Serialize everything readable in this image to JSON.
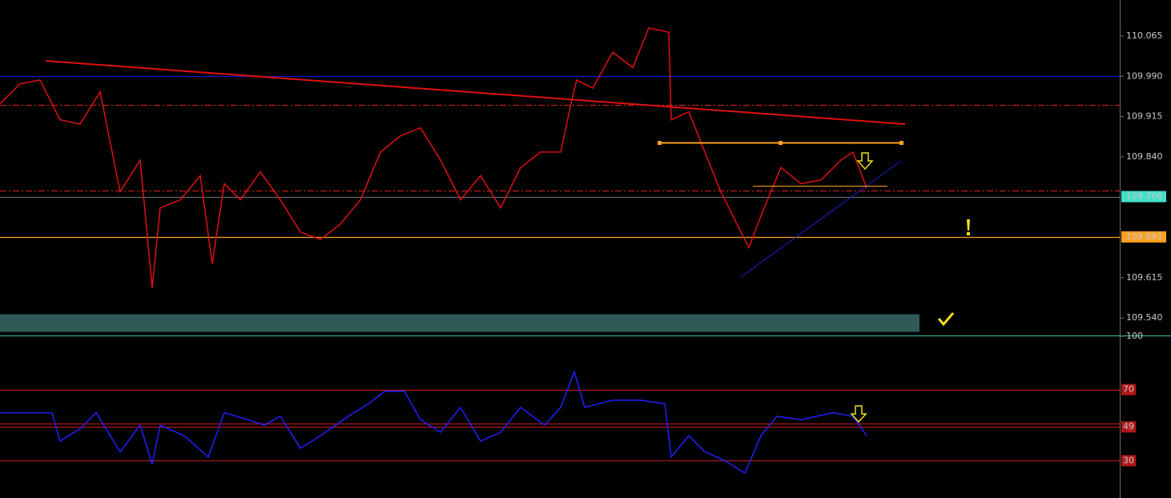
{
  "chart_data": [
    {
      "type": "line",
      "color": "#e01010",
      "x": [
        0,
        25,
        50,
        75,
        100,
        125,
        150,
        175,
        190,
        200,
        225,
        250,
        265,
        280,
        300,
        325,
        350,
        375,
        400,
        425,
        450,
        475,
        500,
        525,
        550,
        575,
        600,
        625,
        650,
        675,
        700,
        715,
        720,
        740,
        765,
        790,
        810,
        835,
        838,
        860,
        880,
        900,
        920,
        935,
        950,
        975,
        1000,
        1025,
        1050,
        1065,
        1082
      ],
      "values": [
        109.939,
        109.976,
        109.983,
        109.909,
        109.901,
        109.961,
        109.775,
        109.834,
        109.596,
        109.745,
        109.76,
        109.805,
        109.641,
        109.79,
        109.76,
        109.812,
        109.76,
        109.7,
        109.686,
        109.715,
        109.76,
        109.849,
        109.879,
        109.894,
        109.834,
        109.76,
        109.805,
        109.745,
        109.82,
        109.849,
        109.849,
        109.953,
        109.983,
        109.968,
        110.035,
        110.006,
        110.08,
        110.072,
        109.909,
        109.924,
        109.849,
        109.775,
        109.715,
        109.671,
        109.73,
        109.82,
        109.79,
        109.797,
        109.834,
        109.849,
        109.782
      ],
      "xlim": [
        0,
        1398
      ],
      "ylim": [
        109.509,
        110.132
      ],
      "yticks": [
        110.065,
        {
          "value": 109.99,
          "label": "109.990"
        },
        109.915,
        {
          "value": 109.84,
          "label": "109.840"
        },
        109.615,
        {
          "value": 109.54,
          "label": "109.540"
        }
      ],
      "hlines": [
        {
          "value": 109.99,
          "color": "#1818d0",
          "dash": "none"
        },
        {
          "value": 109.937,
          "color": "#c02020",
          "dash": "8 3 2 3"
        },
        {
          "value": 109.778,
          "color": "#c02020",
          "dash": "8 3 2 3"
        },
        {
          "value": 109.766,
          "color": "#5a6a70",
          "dash": "none"
        },
        {
          "value": 109.691,
          "color": "#ffa020",
          "dash": "none"
        }
      ],
      "price_labels": [
        {
          "value": 109.766,
          "color": "#40e0c8"
        },
        {
          "value": 109.691,
          "color": "#ffa020"
        }
      ],
      "band": [
        109.514,
        109.547
      ],
      "band_color": "#2f5a58"
    },
    {
      "type": "line",
      "color": "#2020ff",
      "x": [
        0,
        30,
        65,
        75,
        100,
        120,
        150,
        175,
        190,
        200,
        230,
        260,
        280,
        310,
        330,
        350,
        375,
        400,
        435,
        460,
        480,
        505,
        525,
        550,
        575,
        600,
        625,
        650,
        680,
        700,
        717,
        730,
        765,
        800,
        830,
        838,
        860,
        880,
        905,
        930,
        950,
        970,
        1000,
        1040,
        1065,
        1082
      ],
      "values": [
        57,
        57,
        57,
        41,
        48,
        57,
        35,
        50,
        28,
        50,
        44,
        32,
        57,
        53,
        50,
        55,
        37,
        44,
        55,
        62,
        69,
        69,
        53,
        46,
        60,
        41,
        46,
        60,
        50,
        60,
        80,
        60,
        64,
        64,
        62,
        32,
        44,
        35,
        30,
        23,
        44,
        55,
        53,
        57,
        55,
        44
      ],
      "xlim": [
        0,
        1398
      ],
      "ylim": [
        9,
        100
      ],
      "yticks": [
        100
      ],
      "levels": [
        70,
        51,
        49,
        30
      ],
      "level_labels": [
        70,
        49,
        30
      ],
      "level_color": "#b01818"
    }
  ]
}
